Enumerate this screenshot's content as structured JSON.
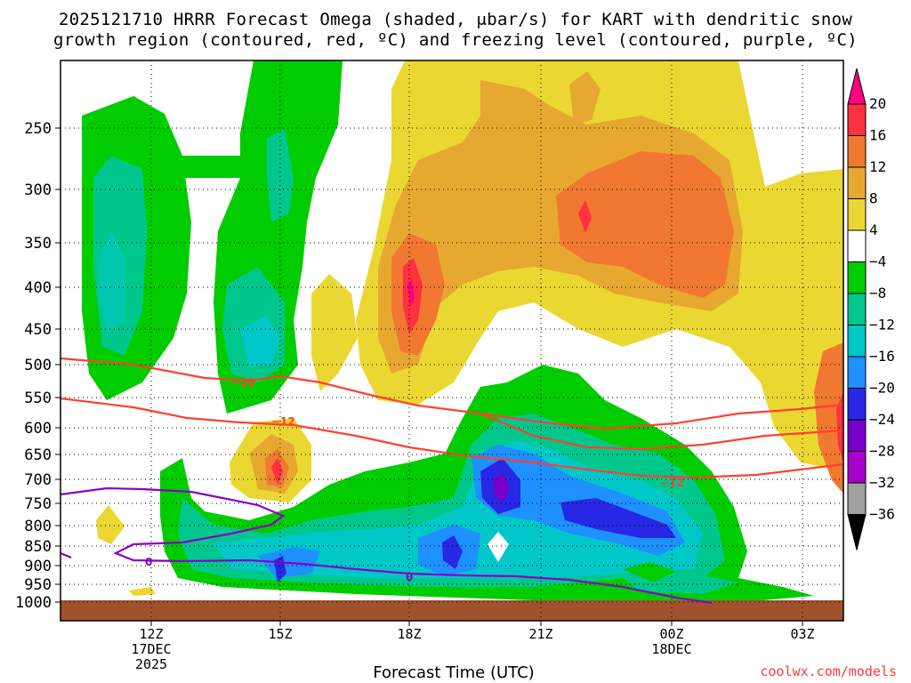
{
  "title_line1": "2025121710 HRRR Forecast Omega (shaded, μbar/s) for KART with dendritic snow",
  "title_line2": "growth region (contoured, red, ºC) and freezing level (contoured, purple, ºC)",
  "x_axis_label": "Forecast Time (UTC)",
  "credit": "coolwx.com/models",
  "colors": {
    "ground": "#a0522d",
    "dendritic_contour": "#ff4030",
    "freezing_contour": "#8a00c8",
    "grid": "#000000"
  },
  "chart_data": {
    "type": "heatmap",
    "y_axis_ticks": [
      "250",
      "300",
      "350",
      "400",
      "450",
      "500",
      "550",
      "600",
      "650",
      "700",
      "750",
      "800",
      "850",
      "900",
      "950",
      "1000"
    ],
    "y_axis_note": "pressure (hPa), inverted",
    "x_axis_ticks": [
      {
        "hour": "12Z",
        "date": "17DEC",
        "year": "2025"
      },
      {
        "hour": "15Z",
        "date": "",
        "year": ""
      },
      {
        "hour": "18Z",
        "date": "",
        "year": ""
      },
      {
        "hour": "21Z",
        "date": "",
        "year": ""
      },
      {
        "hour": "00Z",
        "date": "18DEC",
        "year": ""
      },
      {
        "hour": "03Z",
        "date": "",
        "year": ""
      }
    ],
    "colorbar": {
      "levels": [
        "20",
        "16",
        "12",
        "8",
        "4",
        "−4",
        "−8",
        "−12",
        "−16",
        "−20",
        "−24",
        "−28",
        "−32",
        "−36"
      ],
      "colors": [
        "#ff007f",
        "#ff3040",
        "#f07830",
        "#e6a830",
        "#ebd732",
        "#ffffff",
        "#00cc00",
        "#00c88c",
        "#00c8c8",
        "#1e90ff",
        "#2828e6",
        "#7800c8",
        "#aa00cc",
        "#a0a0a0",
        "#000000"
      ]
    },
    "contours": [
      {
        "series": "dendritic",
        "label": "−18"
      },
      {
        "series": "dendritic",
        "label": "−12"
      },
      {
        "series": "dendritic",
        "label": "−12"
      },
      {
        "series": "freezing",
        "label": "0"
      },
      {
        "series": "freezing",
        "label": "0"
      }
    ],
    "grid": "dotted"
  }
}
